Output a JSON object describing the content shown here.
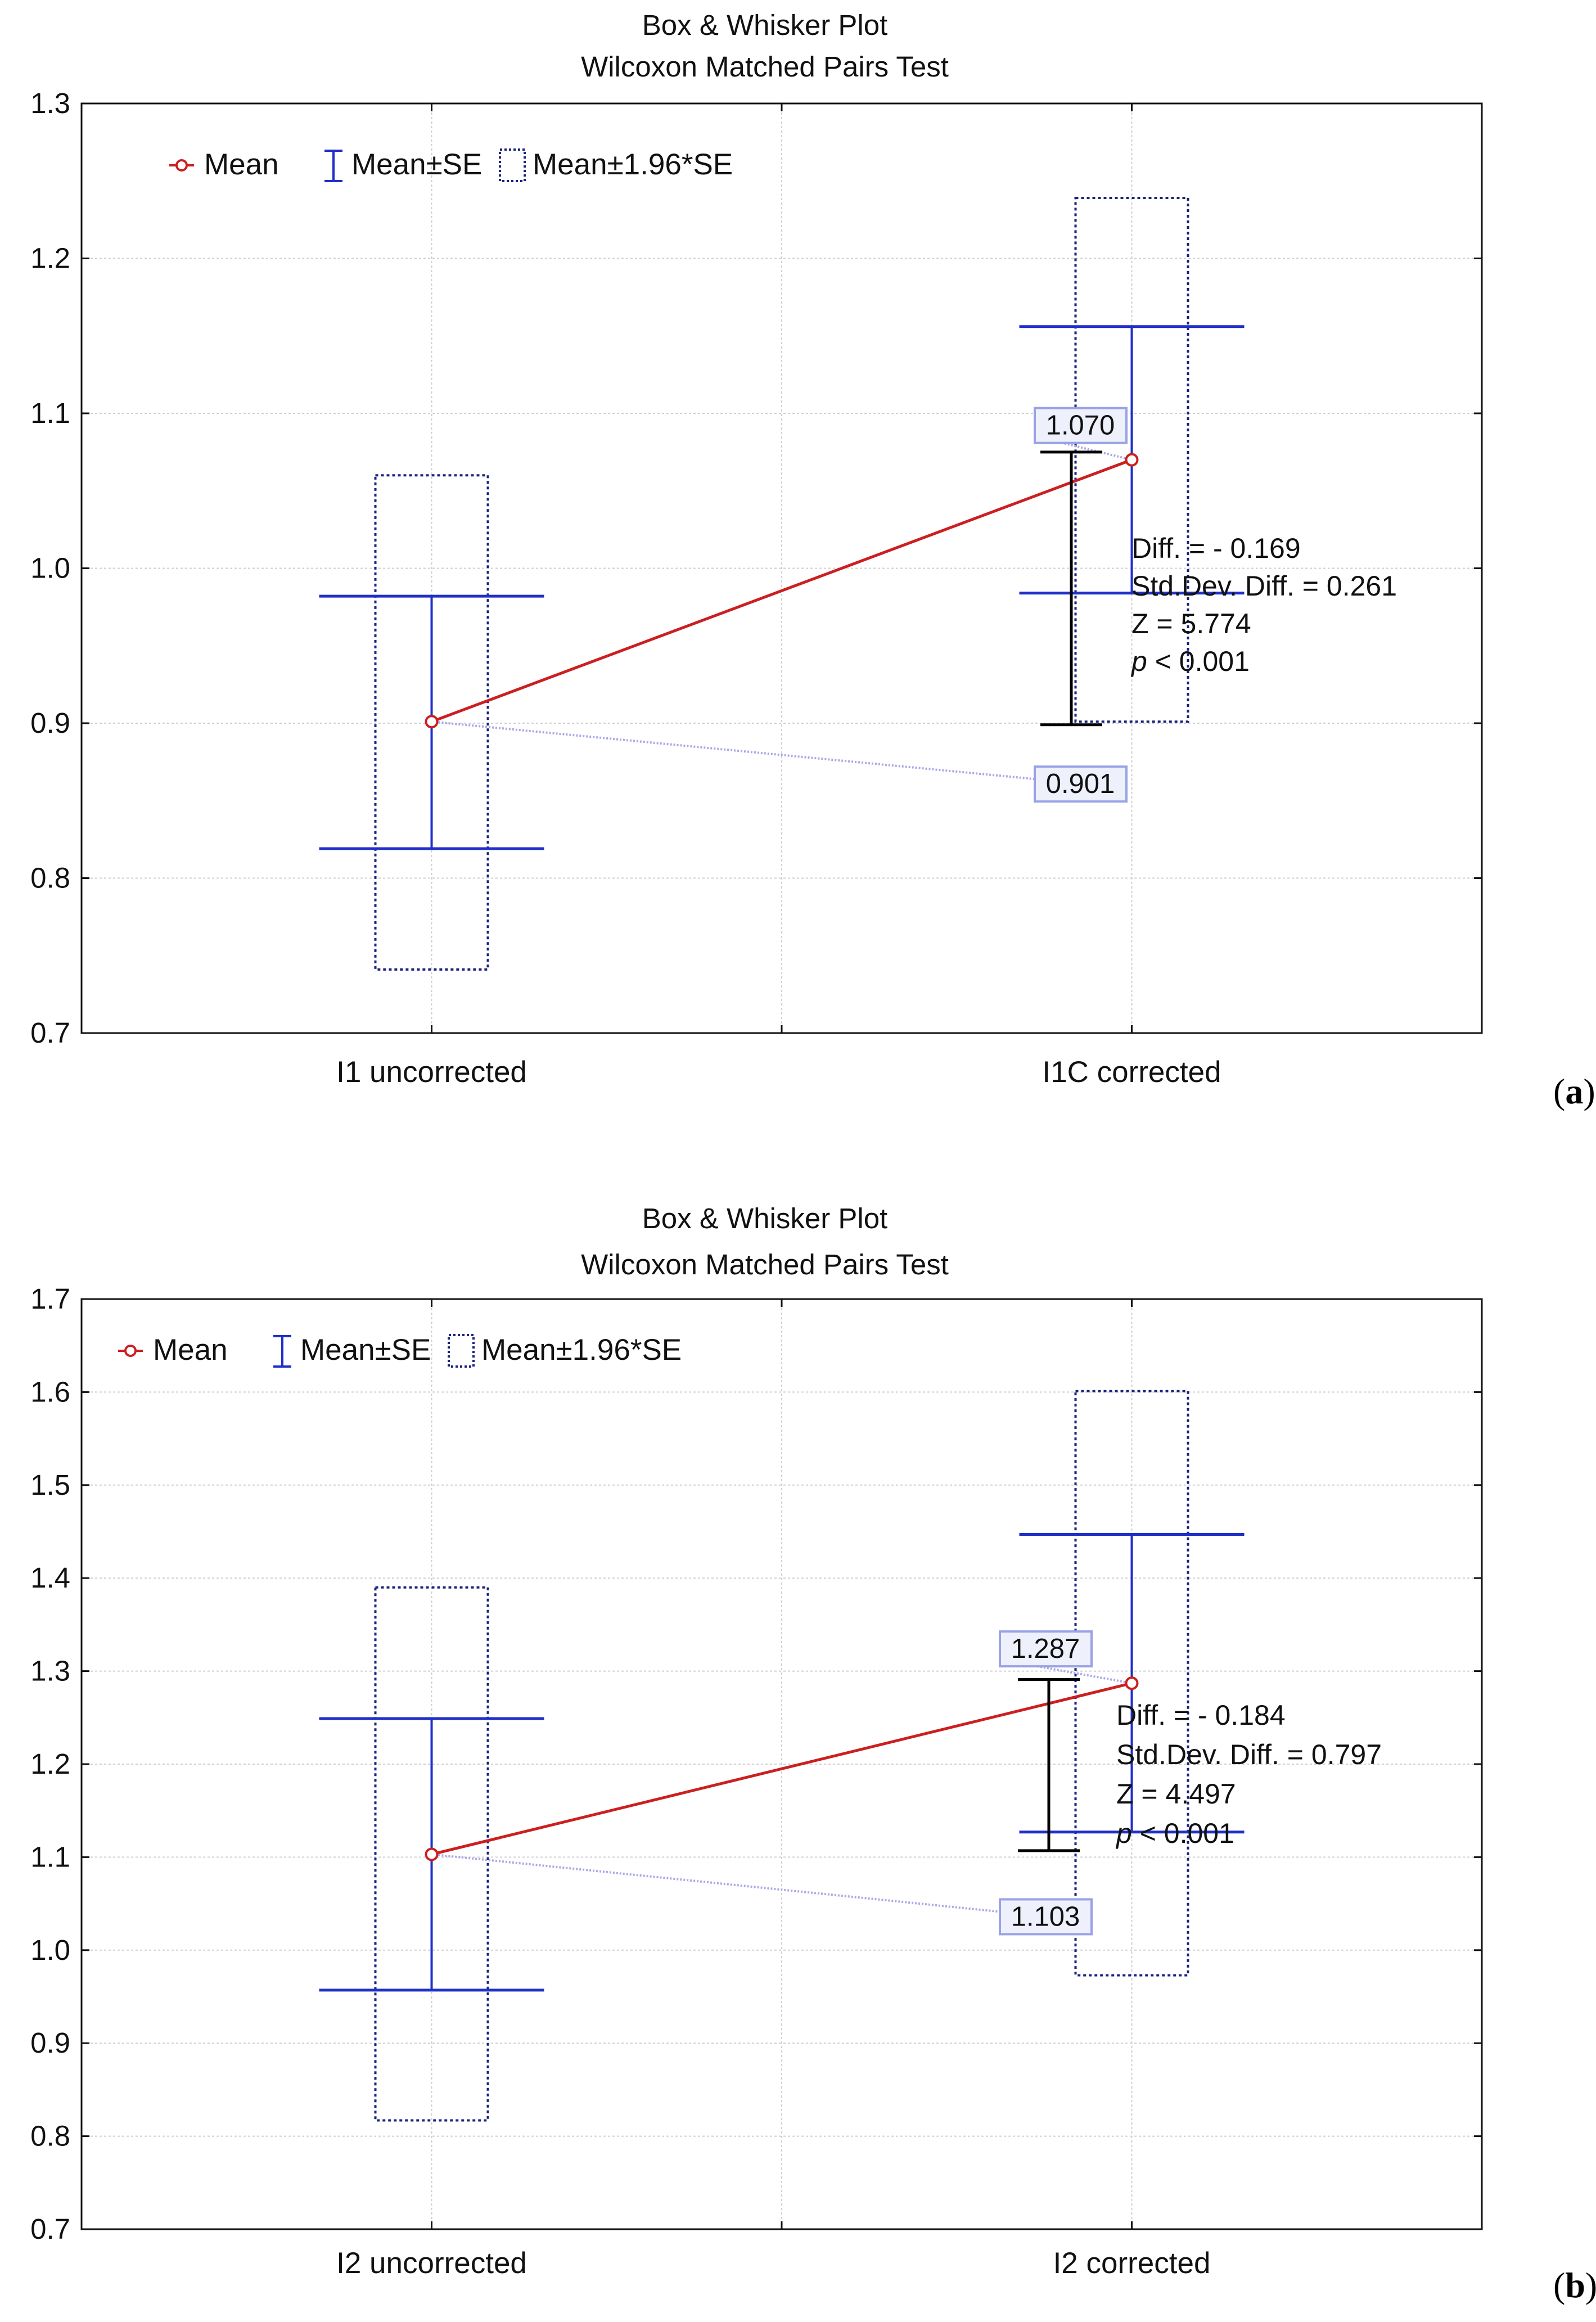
{
  "chart_data": [
    {
      "type": "box",
      "panel_label": "a",
      "title": "Box & Whisker Plot",
      "subtitle": "Wilcoxon Matched Pairs Test",
      "xlabel": "",
      "ylabel": "",
      "ylim": [
        0.7,
        1.3
      ],
      "yticks": [
        0.7,
        0.8,
        0.9,
        1.0,
        1.1,
        1.2,
        1.3
      ],
      "ytick_labels": [
        "0.7",
        "0.8",
        "0.9",
        "1.0",
        "1.1",
        "1.2",
        "1.3"
      ],
      "grid": true,
      "legend": {
        "position": "top-left",
        "entries": [
          "Mean",
          "Mean±SE",
          "Mean±1.96*SE"
        ]
      },
      "categories": [
        "I1 uncorrected",
        "I1C corrected"
      ],
      "series": [
        {
          "name": "Mean",
          "values": [
            0.901,
            1.07
          ]
        },
        {
          "name": "Mean±SE low",
          "values": [
            0.819,
            0.984
          ]
        },
        {
          "name": "Mean±SE high",
          "values": [
            0.982,
            1.156
          ]
        },
        {
          "name": "Mean±1.96*SE low",
          "values": [
            0.741,
            0.901
          ]
        },
        {
          "name": "Mean±1.96*SE high",
          "values": [
            1.06,
            1.239
          ]
        }
      ],
      "annotations": {
        "callout_values": [
          "0.901",
          "1.070"
        ],
        "diff_bracket": [
          0.899,
          1.075
        ],
        "stats": [
          "Diff. = - 0.169",
          "Std.Dev. Diff. = 0.261",
          "Z = 5.774",
          "< 0.001"
        ],
        "p_label": "p"
      }
    },
    {
      "type": "box",
      "panel_label": "b",
      "title": "Box & Whisker Plot",
      "subtitle": "Wilcoxon Matched Pairs Test",
      "xlabel": "",
      "ylabel": "",
      "ylim": [
        0.7,
        1.7
      ],
      "yticks": [
        0.7,
        0.8,
        0.9,
        1.0,
        1.1,
        1.2,
        1.3,
        1.4,
        1.5,
        1.6,
        1.7
      ],
      "ytick_labels": [
        "0.7",
        "0.8",
        "0.9",
        "1.0",
        "1.1",
        "1.2",
        "1.3",
        "1.4",
        "1.5",
        "1.6",
        "1.7"
      ],
      "grid": true,
      "legend": {
        "position": "top-left",
        "entries": [
          "Mean",
          "Mean±SE",
          "Mean±1.96*SE"
        ]
      },
      "categories": [
        "I2 uncorrected",
        "I2 corrected"
      ],
      "series": [
        {
          "name": "Mean",
          "values": [
            1.103,
            1.287
          ]
        },
        {
          "name": "Mean±SE low",
          "values": [
            0.957,
            1.127
          ]
        },
        {
          "name": "Mean±SE high",
          "values": [
            1.249,
            1.447
          ]
        },
        {
          "name": "Mean±1.96*SE low",
          "values": [
            0.817,
            0.973
          ]
        },
        {
          "name": "Mean±1.96*SE high",
          "values": [
            1.39,
            1.601
          ]
        }
      ],
      "annotations": {
        "callout_values": [
          "1.103",
          "1.287"
        ],
        "diff_bracket": [
          1.107,
          1.291
        ],
        "stats": [
          "Diff. = - 0.184",
          "Std.Dev. Diff. = 0.797",
          "Z = 4.497",
          "< 0.001"
        ],
        "p_label": "p"
      }
    }
  ],
  "colors": {
    "mean_line": "#cc1f1f",
    "mean_marker_fill": "#ffffff",
    "se_whisker": "#1f2fc8",
    "ci_box": "#1a237e",
    "grid": "#cfcfcf",
    "callout_leader": "#a9a9e8",
    "callout_box_fill": "#eef0fb",
    "callout_box_stroke": "#9aa2e6",
    "diff_bracket": "#000000"
  }
}
